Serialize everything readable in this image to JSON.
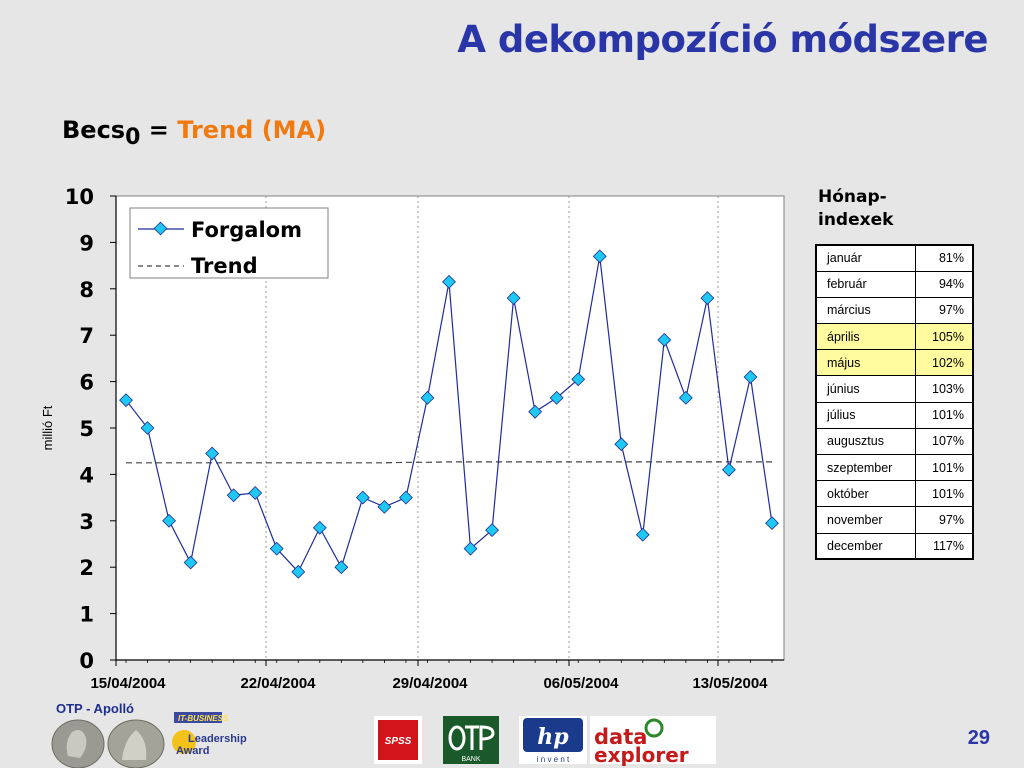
{
  "slide": {
    "title": "A dekompozíció módszere",
    "formula_becs": "Becs",
    "formula_sub": "0",
    "formula_eq": " = ",
    "formula_trend": "Trend (MA)",
    "page_number": "29"
  },
  "footer": {
    "otp_label": "OTP - Apolló",
    "award_line1": "IT-BUSINESS",
    "award_line2": "Leadership",
    "award_line3": "Award",
    "spss": "SPSS",
    "otp_bank": "BANK",
    "hp": "hp",
    "hp_invent": "i n v e n t",
    "de_line1": "data",
    "de_line2": "explorer"
  },
  "table": {
    "title_line1": "Hónap-",
    "title_line2": "indexek",
    "rows": [
      {
        "month": "január",
        "value": "81%"
      },
      {
        "month": "február",
        "value": "94%"
      },
      {
        "month": "március",
        "value": "97%"
      },
      {
        "month": "április",
        "value": "105%"
      },
      {
        "month": "május",
        "value": "102%"
      },
      {
        "month": "június",
        "value": "103%"
      },
      {
        "month": "július",
        "value": "101%"
      },
      {
        "month": "augusztus",
        "value": "107%"
      },
      {
        "month": "szeptember",
        "value": "101%"
      },
      {
        "month": "október",
        "value": "101%"
      },
      {
        "month": "november",
        "value": "97%"
      },
      {
        "month": "december",
        "value": "117%"
      }
    ],
    "highlight_color": "#fffb9e"
  },
  "chart_data": {
    "type": "line",
    "ylabel": "millió Ft",
    "ylim": [
      0,
      10
    ],
    "yticks": [
      0,
      1,
      2,
      3,
      4,
      5,
      6,
      7,
      8,
      9,
      10
    ],
    "x_tick_labels": [
      "15/04/2004",
      "22/04/2004",
      "29/04/2004",
      "06/05/2004",
      "13/05/2004"
    ],
    "grid": "vertical dashed",
    "legend_position": "top-left",
    "series": [
      {
        "name": "Forgalom",
        "style": "line-diamond",
        "color": "#1f2d9c",
        "marker_color": "#1ec8f0",
        "values": [
          5.6,
          5.0,
          3.0,
          2.1,
          4.45,
          3.55,
          3.6,
          2.4,
          1.9,
          2.85,
          2.0,
          3.5,
          3.3,
          3.5,
          5.65,
          8.15,
          2.4,
          2.8,
          7.8,
          5.35,
          5.65,
          6.05,
          8.7,
          4.65,
          2.7,
          6.9,
          5.65,
          7.8,
          4.1,
          6.1,
          2.95
        ]
      },
      {
        "name": "Trend",
        "style": "dashed",
        "color": "#444444",
        "values": [
          4.25,
          4.25,
          4.25,
          4.25,
          4.25,
          4.25,
          4.25,
          4.25,
          4.25,
          4.25,
          4.25,
          4.25,
          4.25,
          4.26,
          4.26,
          4.27,
          4.27,
          4.27,
          4.27,
          4.27,
          4.27,
          4.27,
          4.27,
          4.27,
          4.27,
          4.27,
          4.27,
          4.27,
          4.27,
          4.27,
          4.27
        ]
      }
    ]
  }
}
